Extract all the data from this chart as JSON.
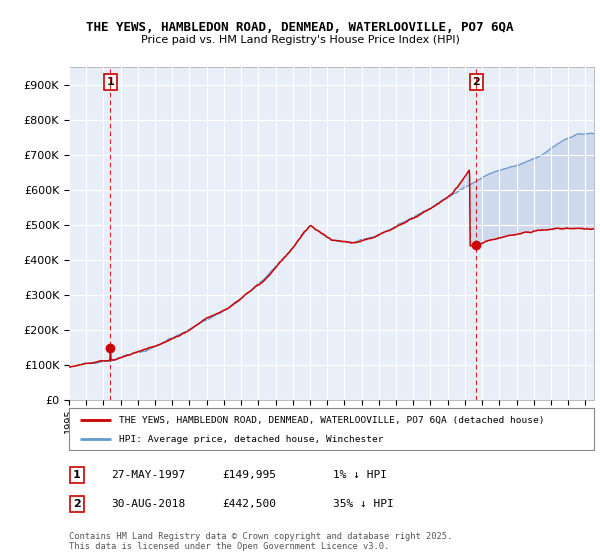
{
  "title_line1": "THE YEWS, HAMBLEDON ROAD, DENMEAD, WATERLOOVILLE, PO7 6QA",
  "title_line2": "Price paid vs. HM Land Registry's House Price Index (HPI)",
  "xlim_start": 1995.0,
  "xlim_end": 2025.5,
  "ylim_min": 0,
  "ylim_max": 950000,
  "yticks": [
    0,
    100000,
    200000,
    300000,
    400000,
    500000,
    600000,
    700000,
    800000,
    900000
  ],
  "ytick_labels": [
    "£0",
    "£100K",
    "£200K",
    "£300K",
    "£400K",
    "£500K",
    "£600K",
    "£700K",
    "£800K",
    "£900K"
  ],
  "transaction1_x": 1997.4,
  "transaction1_y": 149995,
  "transaction2_x": 2018.66,
  "transaction2_y": 442500,
  "transaction1_label": "1",
  "transaction2_label": "2",
  "sale_color": "#cc0000",
  "hpi_color": "#6699cc",
  "hpi_fill_color": "#aabbdd",
  "legend_sale_label": "THE YEWS, HAMBLEDON ROAD, DENMEAD, WATERLOOVILLE, PO7 6QA (detached house)",
  "legend_hpi_label": "HPI: Average price, detached house, Winchester",
  "annotation1_date": "27-MAY-1997",
  "annotation1_price": "£149,995",
  "annotation1_hpi": "1% ↓ HPI",
  "annotation2_date": "30-AUG-2018",
  "annotation2_price": "£442,500",
  "annotation2_hpi": "35% ↓ HPI",
  "footnote": "Contains HM Land Registry data © Crown copyright and database right 2025.\nThis data is licensed under the Open Government Licence v3.0.",
  "background_color": "#e8eef8",
  "grid_color": "#ffffff",
  "fig_background": "#ffffff",
  "hpi_waypoints_t": [
    0.0,
    0.08,
    0.15,
    0.22,
    0.3,
    0.37,
    0.42,
    0.46,
    0.5,
    0.54,
    0.58,
    0.63,
    0.68,
    0.73,
    0.77,
    0.8,
    0.83,
    0.87,
    0.9,
    0.93,
    0.97,
    1.0
  ],
  "hpi_waypoints_v": [
    95000,
    115000,
    145000,
    195000,
    265000,
    350000,
    430000,
    500000,
    460000,
    455000,
    470000,
    505000,
    545000,
    590000,
    625000,
    650000,
    665000,
    680000,
    700000,
    730000,
    760000,
    760000
  ],
  "sale_waypoints_t": [
    0.0,
    0.08,
    0.15,
    0.22,
    0.3,
    0.37,
    0.42,
    0.46,
    0.5,
    0.54,
    0.58,
    0.63,
    0.68,
    0.73,
    0.763,
    0.764,
    0.8,
    0.87,
    0.93,
    1.0
  ],
  "sale_waypoints_v": [
    95000,
    115000,
    148000,
    198000,
    268000,
    355000,
    435000,
    505000,
    465000,
    458000,
    473000,
    508000,
    548000,
    595000,
    660000,
    442500,
    458000,
    478000,
    490000,
    490000
  ]
}
